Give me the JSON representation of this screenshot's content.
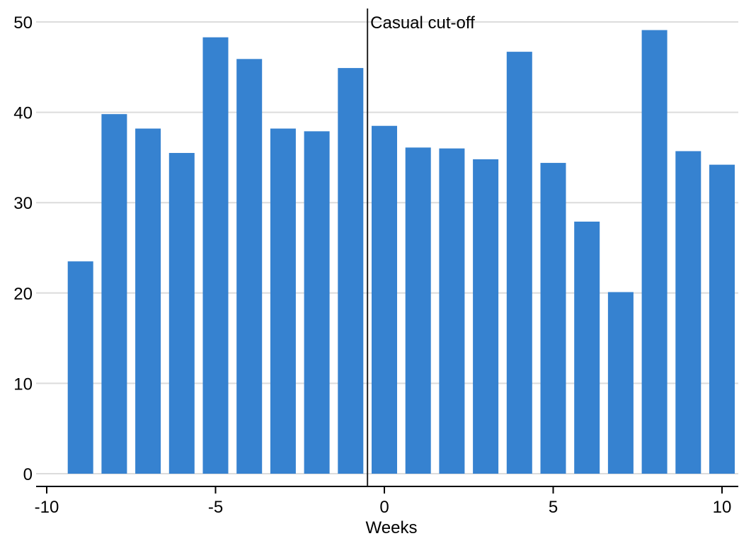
{
  "chart_data": {
    "type": "bar",
    "xlabel": "Weeks",
    "ylabel": "",
    "x": [
      -9,
      -8,
      -7,
      -6,
      -5,
      -4,
      -3,
      -2,
      -1,
      0,
      1,
      2,
      3,
      4,
      5,
      6,
      7,
      8,
      9,
      10
    ],
    "values": [
      23.5,
      39.8,
      38.2,
      35.5,
      48.3,
      45.9,
      38.2,
      37.9,
      44.9,
      38.5,
      36.1,
      36.0,
      34.8,
      46.7,
      34.4,
      27.9,
      20.1,
      49.1,
      35.7,
      34.2
    ],
    "xlim": [
      -10,
      10
    ],
    "ylim": [
      0,
      50
    ],
    "xticks": [
      -10,
      -5,
      0,
      5,
      10
    ],
    "yticks": [
      0,
      10,
      20,
      30,
      40,
      50
    ],
    "grid": "horizontal",
    "bar_color": "#3682d0",
    "grid_color": "#dcdcdc",
    "cutoff": {
      "x": -0.5,
      "label": "Casual cut-off",
      "color": "#222222"
    }
  }
}
